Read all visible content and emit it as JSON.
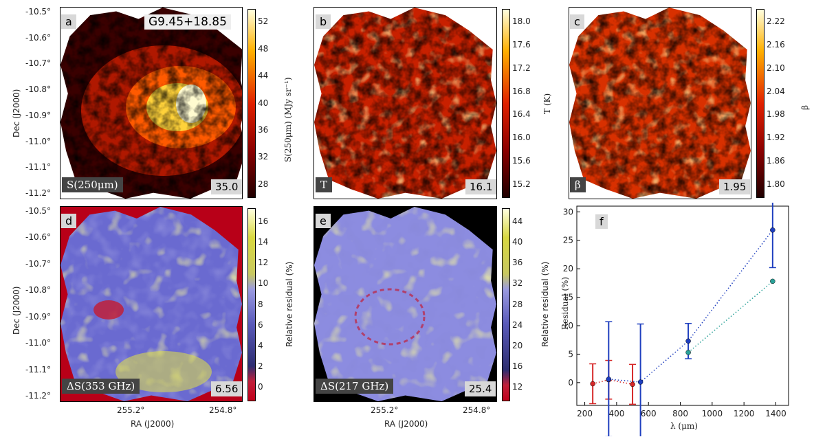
{
  "panels": {
    "a": {
      "letter": "a",
      "title": "G9.45+18.85",
      "label": "S(250μm)",
      "value": "35.0",
      "colorbar": {
        "label": "S(250μm) (MJy sr⁻¹)",
        "ticks": [
          "52",
          "48",
          "44",
          "40",
          "36",
          "32",
          "28"
        ]
      }
    },
    "b": {
      "letter": "b",
      "label": "T",
      "value": "16.1",
      "colorbar": {
        "label": "T (K)",
        "ticks": [
          "18.0",
          "17.6",
          "17.2",
          "16.8",
          "16.4",
          "16.0",
          "15.6",
          "15.2"
        ]
      }
    },
    "c": {
      "letter": "c",
      "label": "β",
      "value": "1.95",
      "colorbar": {
        "label": "β",
        "ticks": [
          "2.22",
          "2.16",
          "2.10",
          "2.04",
          "1.98",
          "1.92",
          "1.86",
          "1.80"
        ]
      }
    },
    "d": {
      "letter": "d",
      "label": "ΔS(353 GHz)",
      "value": "6.56",
      "colorbar": {
        "label": "Relative residual (%)",
        "ticks": [
          "16",
          "14",
          "12",
          "10",
          "8",
          "6",
          "4",
          "2",
          "0"
        ]
      }
    },
    "e": {
      "letter": "e",
      "label": "ΔS(217 GHz)",
      "value": "25.4",
      "colorbar": {
        "label": "Relative residual (%)",
        "ticks": [
          "44",
          "40",
          "36",
          "32",
          "28",
          "24",
          "20",
          "16",
          "12"
        ]
      }
    },
    "f": {
      "letter": "f"
    }
  },
  "axes": {
    "dec_label": "Dec (J2000)",
    "ra_label": "RA (J2000)",
    "dec_ticks": [
      "-10.5°",
      "-10.6°",
      "-10.7°",
      "-10.8°",
      "-10.9°",
      "-11.0°",
      "-11.1°",
      "-11.2°"
    ],
    "ra_ticks": [
      "255.2°",
      "254.8°"
    ]
  },
  "chart_data": {
    "type": "scatter",
    "xlabel": "λ (μm)",
    "ylabel": "Residual (%)",
    "xlim": [
      150,
      1480
    ],
    "ylim": [
      -4,
      31
    ],
    "xticks": [
      200,
      400,
      600,
      800,
      1000,
      1200,
      1400
    ],
    "yticks": [
      0,
      5,
      10,
      15,
      20,
      25,
      30
    ],
    "grid": false,
    "series": [
      {
        "color": "#d62728",
        "linestyle": "dotted",
        "points": [
          {
            "x": 250,
            "y": -0.2,
            "err": 3.5
          },
          {
            "x": 350,
            "y": 0.5,
            "err": 3.4
          },
          {
            "x": 500,
            "y": -0.3,
            "err": 3.5
          }
        ]
      },
      {
        "color": "#1f3fbf",
        "linestyle": "dotted",
        "points": [
          {
            "x": 350,
            "y": 0.6,
            "err": 10.1
          },
          {
            "x": 550,
            "y": 0.1,
            "err": 10.2
          },
          {
            "x": 850,
            "y": 7.3,
            "err": 3.1
          },
          {
            "x": 1380,
            "y": 26.8,
            "err": 6.6
          }
        ]
      },
      {
        "color": "#2aa198",
        "linestyle": "dotted",
        "points": [
          {
            "x": 850,
            "y": 5.3
          },
          {
            "x": 1380,
            "y": 17.8
          }
        ]
      }
    ]
  }
}
